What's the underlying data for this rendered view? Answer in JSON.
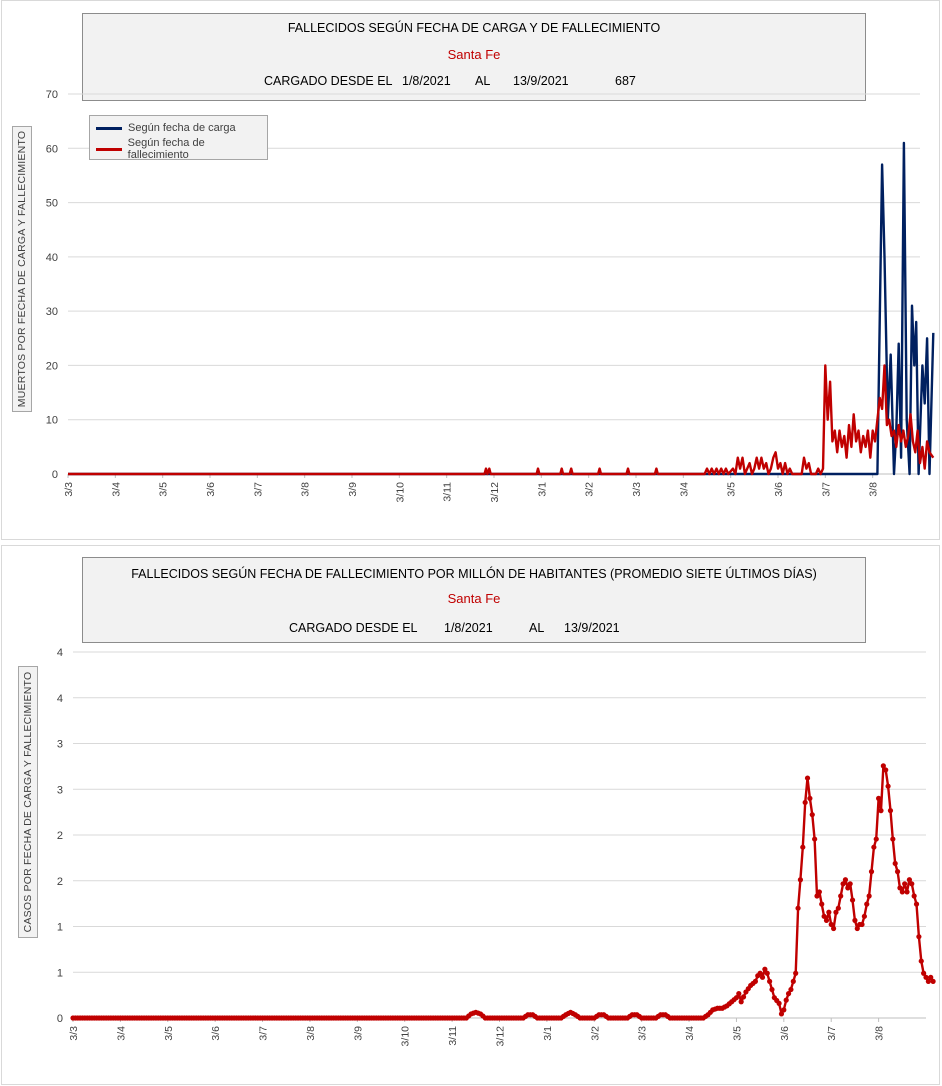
{
  "chart_data": [
    {
      "type": "line",
      "title": "FALLECIDOS SEGÚN FECHA DE CARGA Y DE FALLECIMIENTO",
      "subtitle": "Santa Fe",
      "info": {
        "label": "CARGADO DESDE EL",
        "from": "1/8/2021",
        "sep": "AL",
        "to": "13/9/2021",
        "total": "687"
      },
      "ylabel": "MUERTOS  POR FECHA DE CARGA  Y FALLECIMIENTO",
      "ylim": [
        0,
        70
      ],
      "yticks": [
        "0",
        "10",
        "20",
        "30",
        "40",
        "50",
        "60",
        "70"
      ],
      "xticks": [
        "3/3",
        "3/4",
        "3/5",
        "3/6",
        "3/7",
        "3/8",
        "3/9",
        "3/10",
        "3/11",
        "3/12",
        "3/1",
        "3/2",
        "3/3",
        "3/4",
        "3/5",
        "3/6",
        "3/7",
        "3/8"
      ],
      "grid": true,
      "legend_placement": "top-left",
      "series": [
        {
          "name": "Según fecha de carga",
          "color": "#002060",
          "points": [
            [
              0,
              0
            ],
            [
              17.1,
              0
            ],
            [
              17.2,
              57
            ],
            [
              17.25,
              40
            ],
            [
              17.32,
              10
            ],
            [
              17.38,
              22
            ],
            [
              17.45,
              0
            ],
            [
              17.5,
              8
            ],
            [
              17.55,
              24
            ],
            [
              17.6,
              3
            ],
            [
              17.66,
              61
            ],
            [
              17.72,
              10
            ],
            [
              17.78,
              0
            ],
            [
              17.83,
              31
            ],
            [
              17.88,
              20
            ],
            [
              17.92,
              28
            ],
            [
              17.97,
              0
            ],
            [
              18.05,
              20
            ],
            [
              18.1,
              13
            ],
            [
              18.15,
              25
            ],
            [
              18.2,
              0
            ],
            [
              18.28,
              26
            ]
          ]
        },
        {
          "name": "Según fecha de fallecimiento",
          "color": "#c00000",
          "points": [
            [
              0,
              0
            ],
            [
              8.8,
              0
            ],
            [
              8.83,
              1
            ],
            [
              8.86,
              0
            ],
            [
              8.9,
              1
            ],
            [
              8.93,
              0
            ],
            [
              9.9,
              0
            ],
            [
              9.93,
              1
            ],
            [
              9.96,
              0
            ],
            [
              10.4,
              0
            ],
            [
              10.43,
              1
            ],
            [
              10.46,
              0
            ],
            [
              10.6,
              0
            ],
            [
              10.63,
              1
            ],
            [
              10.66,
              0
            ],
            [
              11.2,
              0
            ],
            [
              11.23,
              1
            ],
            [
              11.26,
              0
            ],
            [
              11.8,
              0
            ],
            [
              11.83,
              1
            ],
            [
              11.86,
              0
            ],
            [
              12.4,
              0
            ],
            [
              12.43,
              1
            ],
            [
              12.46,
              0
            ],
            [
              13.45,
              0
            ],
            [
              13.5,
              1
            ],
            [
              13.55,
              0
            ],
            [
              13.6,
              1
            ],
            [
              13.65,
              0
            ],
            [
              13.7,
              1
            ],
            [
              13.75,
              0
            ],
            [
              13.8,
              1
            ],
            [
              13.85,
              0
            ],
            [
              13.9,
              1
            ],
            [
              13.95,
              0
            ],
            [
              14.05,
              1
            ],
            [
              14.1,
              0
            ],
            [
              14.15,
              3
            ],
            [
              14.2,
              1
            ],
            [
              14.25,
              3
            ],
            [
              14.3,
              0
            ],
            [
              14.4,
              2
            ],
            [
              14.45,
              0
            ],
            [
              14.5,
              1
            ],
            [
              14.55,
              3
            ],
            [
              14.6,
              1
            ],
            [
              14.65,
              3
            ],
            [
              14.7,
              1
            ],
            [
              14.75,
              2
            ],
            [
              14.8,
              0
            ],
            [
              14.85,
              1
            ],
            [
              14.9,
              3
            ],
            [
              14.95,
              4
            ],
            [
              15.0,
              1
            ],
            [
              15.05,
              2
            ],
            [
              15.1,
              0
            ],
            [
              15.15,
              2
            ],
            [
              15.2,
              0
            ],
            [
              15.25,
              1
            ],
            [
              15.3,
              0
            ],
            [
              15.5,
              0
            ],
            [
              15.55,
              3
            ],
            [
              15.6,
              1
            ],
            [
              15.65,
              2
            ],
            [
              15.7,
              0
            ],
            [
              15.8,
              0
            ],
            [
              15.85,
              1
            ],
            [
              15.9,
              0
            ],
            [
              15.95,
              1
            ],
            [
              16.0,
              20
            ],
            [
              16.05,
              10
            ],
            [
              16.1,
              17
            ],
            [
              16.15,
              6
            ],
            [
              16.2,
              8
            ],
            [
              16.25,
              4
            ],
            [
              16.3,
              8
            ],
            [
              16.35,
              5
            ],
            [
              16.4,
              7
            ],
            [
              16.45,
              3
            ],
            [
              16.5,
              9
            ],
            [
              16.55,
              5
            ],
            [
              16.6,
              11
            ],
            [
              16.65,
              6
            ],
            [
              16.7,
              8
            ],
            [
              16.75,
              4
            ],
            [
              16.8,
              7
            ],
            [
              16.85,
              5
            ],
            [
              16.9,
              8
            ],
            [
              16.95,
              3
            ],
            [
              17.0,
              8
            ],
            [
              17.05,
              6
            ],
            [
              17.1,
              10
            ],
            [
              17.15,
              14
            ],
            [
              17.2,
              12
            ],
            [
              17.25,
              20
            ],
            [
              17.3,
              9
            ],
            [
              17.35,
              10
            ],
            [
              17.4,
              7
            ],
            [
              17.45,
              8
            ],
            [
              17.5,
              5
            ],
            [
              17.55,
              9
            ],
            [
              17.6,
              6
            ],
            [
              17.65,
              8
            ],
            [
              17.7,
              5
            ],
            [
              17.75,
              7
            ],
            [
              17.8,
              11
            ],
            [
              17.85,
              6
            ],
            [
              17.9,
              4
            ],
            [
              17.95,
              8
            ],
            [
              18.0,
              2
            ],
            [
              18.05,
              5
            ],
            [
              18.1,
              1
            ],
            [
              18.15,
              6
            ],
            [
              18.2,
              4
            ],
            [
              18.28,
              3
            ]
          ]
        }
      ]
    },
    {
      "type": "line",
      "title": "FALLECIDOS SEGÚN FECHA DE FALLECIMIENTO POR MILLÓN DE HABITANTES (PROMEDIO SIETE ÚLTIMOS DÍAS)",
      "subtitle": "Santa Fe",
      "info": {
        "label": "CARGADO DESDE EL",
        "from": "1/8/2021",
        "sep": "AL",
        "to": "13/9/2021"
      },
      "ylabel": "CASOS POR FECHA DE CARGA  Y FALLECIMIENTO",
      "ylim": [
        0,
        4.5
      ],
      "yticks": [
        "0",
        "1",
        "1",
        "2",
        "2",
        "3",
        "3",
        "4",
        "4"
      ],
      "xticks": [
        "3/3",
        "3/4",
        "3/5",
        "3/6",
        "3/7",
        "3/8",
        "3/9",
        "3/10",
        "3/11",
        "3/12",
        "3/1",
        "3/2",
        "3/3",
        "3/4",
        "3/5",
        "3/6",
        "3/7",
        "3/8"
      ],
      "grid": true,
      "series": [
        {
          "color": "#c00000",
          "markers": true,
          "points": [
            [
              0,
              0
            ],
            [
              8.3,
              0
            ],
            [
              8.4,
              0.05
            ],
            [
              8.5,
              0.07
            ],
            [
              8.6,
              0.05
            ],
            [
              8.7,
              0
            ],
            [
              9.5,
              0
            ],
            [
              9.6,
              0.04
            ],
            [
              9.7,
              0.04
            ],
            [
              9.8,
              0
            ],
            [
              10.3,
              0
            ],
            [
              10.4,
              0.04
            ],
            [
              10.5,
              0.07
            ],
            [
              10.6,
              0.04
            ],
            [
              10.7,
              0
            ],
            [
              11.0,
              0
            ],
            [
              11.1,
              0.04
            ],
            [
              11.2,
              0.04
            ],
            [
              11.3,
              0
            ],
            [
              11.7,
              0
            ],
            [
              11.8,
              0.04
            ],
            [
              11.9,
              0.04
            ],
            [
              12.0,
              0
            ],
            [
              12.3,
              0
            ],
            [
              12.4,
              0.04
            ],
            [
              12.5,
              0.04
            ],
            [
              12.6,
              0
            ],
            [
              13.3,
              0
            ],
            [
              13.4,
              0.04
            ],
            [
              13.5,
              0.1
            ],
            [
              13.6,
              0.12
            ],
            [
              13.7,
              0.12
            ],
            [
              13.8,
              0.15
            ],
            [
              13.9,
              0.2
            ],
            [
              14.0,
              0.25
            ],
            [
              14.05,
              0.3
            ],
            [
              14.1,
              0.2
            ],
            [
              14.2,
              0.32
            ],
            [
              14.3,
              0.4
            ],
            [
              14.4,
              0.45
            ],
            [
              14.45,
              0.52
            ],
            [
              14.5,
              0.55
            ],
            [
              14.55,
              0.5
            ],
            [
              14.6,
              0.6
            ],
            [
              14.65,
              0.55
            ],
            [
              14.7,
              0.45
            ],
            [
              14.8,
              0.25
            ],
            [
              14.9,
              0.18
            ],
            [
              14.95,
              0.05
            ],
            [
              15.0,
              0.1
            ],
            [
              15.05,
              0.22
            ],
            [
              15.1,
              0.3
            ],
            [
              15.15,
              0.35
            ],
            [
              15.2,
              0.45
            ],
            [
              15.25,
              0.55
            ],
            [
              15.3,
              1.35
            ],
            [
              15.35,
              1.7
            ],
            [
              15.4,
              2.1
            ],
            [
              15.45,
              2.65
            ],
            [
              15.5,
              2.95
            ],
            [
              15.55,
              2.7
            ],
            [
              15.6,
              2.5
            ],
            [
              15.65,
              2.2
            ],
            [
              15.7,
              1.5
            ],
            [
              15.75,
              1.55
            ],
            [
              15.8,
              1.4
            ],
            [
              15.85,
              1.25
            ],
            [
              15.9,
              1.2
            ],
            [
              15.95,
              1.3
            ],
            [
              16.0,
              1.15
            ],
            [
              16.05,
              1.1
            ],
            [
              16.1,
              1.3
            ],
            [
              16.15,
              1.35
            ],
            [
              16.2,
              1.5
            ],
            [
              16.25,
              1.65
            ],
            [
              16.3,
              1.7
            ],
            [
              16.35,
              1.6
            ],
            [
              16.4,
              1.65
            ],
            [
              16.45,
              1.45
            ],
            [
              16.5,
              1.2
            ],
            [
              16.55,
              1.1
            ],
            [
              16.6,
              1.15
            ],
            [
              16.65,
              1.15
            ],
            [
              16.7,
              1.25
            ],
            [
              16.75,
              1.4
            ],
            [
              16.8,
              1.5
            ],
            [
              16.85,
              1.8
            ],
            [
              16.9,
              2.1
            ],
            [
              16.95,
              2.2
            ],
            [
              17.0,
              2.7
            ],
            [
              17.05,
              2.55
            ],
            [
              17.1,
              3.1
            ],
            [
              17.15,
              3.05
            ],
            [
              17.2,
              2.85
            ],
            [
              17.25,
              2.55
            ],
            [
              17.3,
              2.2
            ],
            [
              17.35,
              1.9
            ],
            [
              17.4,
              1.8
            ],
            [
              17.45,
              1.6
            ],
            [
              17.5,
              1.55
            ],
            [
              17.55,
              1.65
            ],
            [
              17.6,
              1.55
            ],
            [
              17.65,
              1.7
            ],
            [
              17.7,
              1.65
            ],
            [
              17.75,
              1.5
            ],
            [
              17.8,
              1.4
            ],
            [
              17.85,
              1.0
            ],
            [
              17.9,
              0.7
            ],
            [
              17.95,
              0.55
            ],
            [
              18.0,
              0.5
            ],
            [
              18.05,
              0.45
            ],
            [
              18.1,
              0.5
            ],
            [
              18.15,
              0.45
            ]
          ]
        }
      ]
    }
  ]
}
